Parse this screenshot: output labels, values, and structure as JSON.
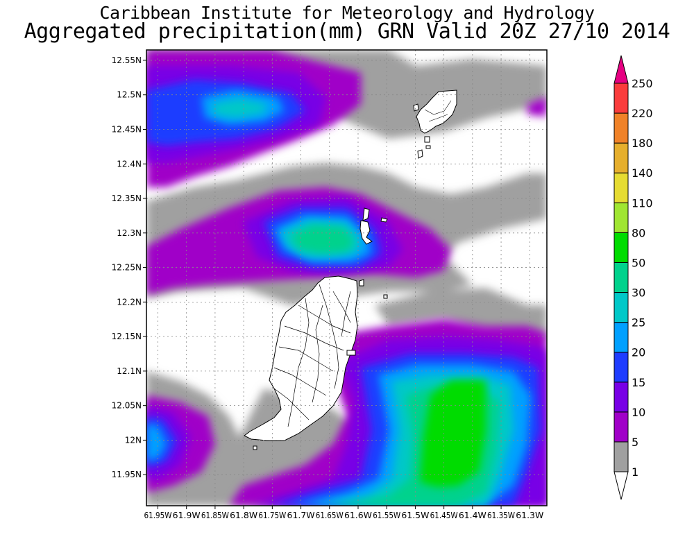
{
  "title_line1": "Caribbean Institute for Meteorology and Hydrology",
  "title_line2": "Aggregated precipitation(mm) GRN Valid 20Z 27/10 2014",
  "y_axis_labels": [
    "12.55N",
    "12.5N",
    "12.45N",
    "12.4N",
    "12.35N",
    "12.3N",
    "12.25N",
    "12.2N",
    "12.15N",
    "12.1N",
    "12.05N",
    "12N",
    "11.95N"
  ],
  "y_axis_values": [
    12.55,
    12.5,
    12.45,
    12.4,
    12.35,
    12.3,
    12.25,
    12.2,
    12.15,
    12.1,
    12.05,
    12.0,
    11.95
  ],
  "x_axis_labels": [
    "61.95W",
    "61.9W",
    "61.85W",
    "61.8W",
    "61.75W",
    "61.7W",
    "61.65W",
    "61.6W",
    "61.55W",
    "61.5W",
    "61.45W",
    "61.4W",
    "61.35W",
    "61.3W"
  ],
  "x_axis_values": [
    -61.95,
    -61.9,
    -61.85,
    -61.8,
    -61.75,
    -61.7,
    -61.65,
    -61.6,
    -61.55,
    -61.5,
    -61.45,
    -61.4,
    -61.35,
    -61.3
  ],
  "extent": {
    "lon_min": -61.97,
    "lon_max": -61.27,
    "lat_min": 11.905,
    "lat_max": 12.565
  },
  "colorbar": {
    "labels": [
      "1",
      "5",
      "10",
      "15",
      "20",
      "25",
      "30",
      "50",
      "80",
      "110",
      "140",
      "180",
      "220",
      "250"
    ],
    "colors": [
      "#ffffff",
      "#a0a0a0",
      "#a000c8",
      "#7800e6",
      "#1e3cff",
      "#00a0ff",
      "#00c8c8",
      "#00d28c",
      "#00dc00",
      "#a0e632",
      "#e6dc32",
      "#e6af2d",
      "#f08228",
      "#fa3c3c",
      "#e60082"
    ]
  },
  "field_colors": {
    "c1": "#a0a0a0",
    "c5": "#a000c8",
    "c10": "#7800e6",
    "c15": "#1e3cff",
    "c20": "#00a0ff",
    "c25": "#00c8c8",
    "c30": "#00d28c",
    "c50": "#00dc00"
  },
  "land_color": "#ffffff",
  "coast_color": "#000000"
}
